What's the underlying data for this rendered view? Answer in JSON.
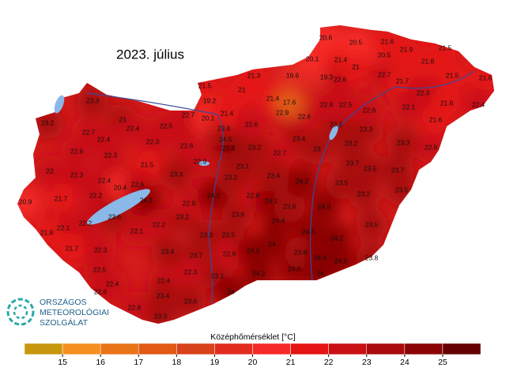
{
  "chart_data": {
    "type": "map",
    "title": "2023. július",
    "colorbar": {
      "label": "Középhőmérséklet [°C]",
      "bins": [
        14,
        15,
        16,
        17,
        18,
        19,
        20,
        21,
        22,
        23,
        24,
        25,
        26
      ],
      "colors": [
        "#c8960c",
        "#f5901e",
        "#ea7418",
        "#e05a16",
        "#d8421a",
        "#e22c20",
        "#f52a28",
        "#e41414",
        "#c81014",
        "#a80a0c",
        "#8a0406",
        "#640000"
      ],
      "ticks": [
        15,
        16,
        17,
        18,
        19,
        20,
        21,
        22,
        23,
        24,
        25
      ]
    },
    "stations": [
      23.3,
      23.2,
      23,
      22.5,
      22.7,
      22.4,
      22.4,
      22.3,
      22.6,
      22.3,
      22.7,
      19.2,
      21.5,
      20.1,
      22.6,
      22.9,
      21.5,
      23.3,
      22,
      22.3,
      22.4,
      20.4,
      22.6,
      24.1,
      22.2,
      21.7,
      20.9,
      23.6,
      22.2,
      22.1,
      21.8,
      21.7,
      22.3,
      22.1,
      22.2,
      23.2,
      22.9,
      24.2,
      22.5,
      22.4,
      22.6,
      23.4,
      23.7,
      22.3,
      22.4,
      23.4,
      22.8,
      23.3,
      23.6,
      23.3,
      23.1,
      24,
      23.5,
      22.9,
      24.2,
      24,
      24.2,
      24.6,
      24,
      23.6,
      22.8,
      24.4,
      24.1,
      23.8,
      24.2,
      24.3,
      23.8,
      24.3,
      24.2,
      24.8,
      24.9,
      23.8,
      23.5,
      23.2,
      23.5,
      23.5,
      23.7,
      23.2,
      23.3,
      23.3,
      23.7,
      23.5,
      22.8,
      23,
      23.4,
      23.1,
      22.7,
      23.4,
      23.1,
      23.2,
      23.2,
      23.9,
      24.5,
      23.8,
      21.4,
      22.6,
      22.9,
      22.6,
      21.4,
      17.6,
      21.3,
      21,
      19.6,
      19.3,
      20.1,
      21.4,
      22.6,
      22.8,
      22.5,
      22.6,
      21,
      20.6,
      20.5,
      20.5,
      21.6,
      21.9,
      21.5,
      21.8,
      22.7,
      21.7,
      22.1,
      22.3,
      21.5,
      21.6,
      21.6,
      22.4,
      21.6
    ]
  },
  "logo": {
    "lines": [
      "ORSZÁGOS",
      "METEOROLÓGIAI",
      "SZOLGÁLAT"
    ]
  }
}
